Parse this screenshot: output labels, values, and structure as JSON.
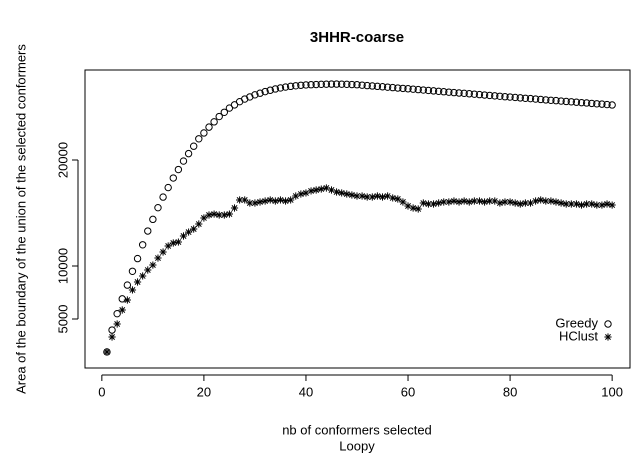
{
  "chart_data": {
    "type": "scatter",
    "title": "3HHR-coarse",
    "x_label": "nb of conformers selected",
    "subtitle": "Loopy",
    "y_label": "Area of the boundary of the union of the selected conformers",
    "x": [
      1,
      2,
      3,
      4,
      5,
      6,
      7,
      8,
      9,
      10,
      11,
      12,
      13,
      14,
      15,
      16,
      17,
      18,
      19,
      20,
      21,
      22,
      23,
      24,
      25,
      26,
      27,
      28,
      29,
      30,
      31,
      32,
      33,
      34,
      35,
      36,
      37,
      38,
      39,
      40,
      41,
      42,
      43,
      44,
      45,
      46,
      47,
      48,
      49,
      50,
      51,
      52,
      53,
      54,
      55,
      56,
      57,
      58,
      59,
      60,
      61,
      62,
      63,
      64,
      65,
      66,
      67,
      68,
      69,
      70,
      71,
      72,
      73,
      74,
      75,
      76,
      77,
      78,
      79,
      80,
      81,
      82,
      83,
      84,
      85,
      86,
      87,
      88,
      89,
      90,
      91,
      92,
      93,
      94,
      95,
      96,
      97,
      98,
      99,
      100
    ],
    "series": [
      {
        "name": "Greedy",
        "marker": "circle",
        "color": "#000000",
        "values": [
          1890,
          3960,
          5500,
          6900,
          8200,
          9500,
          10700,
          12000,
          13300,
          14400,
          15500,
          16500,
          17400,
          18300,
          19100,
          19900,
          20600,
          21300,
          22000,
          22550,
          23100,
          23600,
          24100,
          24500,
          24900,
          25200,
          25500,
          25750,
          25950,
          26150,
          26300,
          26450,
          26580,
          26700,
          26800,
          26880,
          26950,
          27000,
          27050,
          27080,
          27100,
          27120,
          27140,
          27150,
          27160,
          27160,
          27150,
          27140,
          27120,
          27100,
          27060,
          27020,
          26985,
          26950,
          26910,
          26870,
          26830,
          26790,
          26755,
          26720,
          26680,
          26640,
          26600,
          26560,
          26520,
          26480,
          26440,
          26400,
          26360,
          26320,
          26290,
          26250,
          26210,
          26170,
          26130,
          26090,
          26050,
          26010,
          25970,
          25940,
          25900,
          25860,
          25820,
          25790,
          25750,
          25710,
          25670,
          25630,
          25600,
          25560,
          25520,
          25490,
          25450,
          25410,
          25380,
          25340,
          25300,
          25270,
          25230,
          25190
        ]
      },
      {
        "name": "HClust",
        "marker": "asterisk",
        "color": "#000000",
        "values": [
          1890,
          3300,
          4530,
          5850,
          6790,
          7740,
          8490,
          9060,
          9620,
          10090,
          10750,
          11320,
          11890,
          12170,
          12260,
          12830,
          13200,
          13490,
          13960,
          14530,
          14810,
          14900,
          14810,
          14810,
          14900,
          15470,
          16230,
          16230,
          15940,
          15940,
          16040,
          16130,
          16230,
          16130,
          16230,
          16130,
          16230,
          16600,
          16790,
          16890,
          17080,
          17170,
          17260,
          17360,
          17170,
          16980,
          16890,
          16790,
          16700,
          16600,
          16600,
          16510,
          16510,
          16600,
          16510,
          16600,
          16420,
          16320,
          16040,
          15660,
          15470,
          15380,
          15940,
          15850,
          15850,
          15940,
          16040,
          16040,
          16130,
          16040,
          16130,
          16040,
          16130,
          16130,
          16040,
          16130,
          16130,
          15940,
          16040,
          16040,
          15940,
          15850,
          15940,
          15940,
          16130,
          16230,
          16130,
          16130,
          16040,
          15940,
          15850,
          15850,
          15850,
          15750,
          15850,
          15850,
          15750,
          15750,
          15850,
          15750
        ]
      }
    ],
    "xlim": [
      -3.3,
      103.5
    ],
    "ylim": [
      377,
      28490
    ],
    "xticks": [
      0,
      20,
      40,
      60,
      80,
      100
    ],
    "yticks": [
      5000,
      10000,
      20000
    ],
    "legend": "bottomright"
  }
}
